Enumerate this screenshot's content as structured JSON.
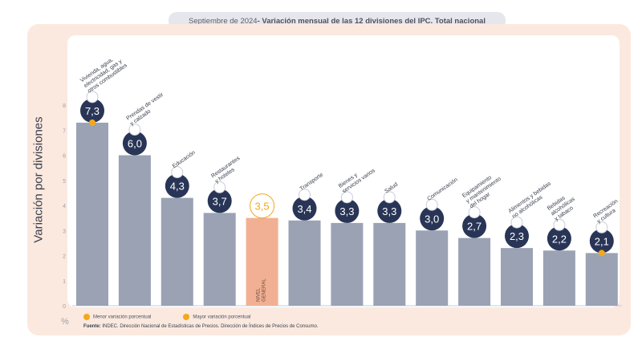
{
  "header": {
    "title_date": "Septiembre de 2024",
    "title_rest": " - Variación mensual de las 12 divisiones del IPC. Total nacional"
  },
  "colors": {
    "bar": "#9aa2b4",
    "highlight": "#f1b093",
    "badge": "#293556",
    "accent": "#f2a81d",
    "background": "#fbe9df"
  },
  "chart_data": {
    "type": "bar",
    "ylabel": "Variación por divisiones",
    "unit": "%",
    "ylim": [
      0,
      8
    ],
    "yticks": [
      0,
      1,
      2,
      3,
      4,
      5,
      6,
      7,
      8
    ],
    "grid": false,
    "categories": [
      "Vivienda, agua, electricidad, gas y otros combustibles",
      "Prendas de vestir y calzado",
      "Educación",
      "Restaurantes y hoteles",
      "Nivel general",
      "Transporte",
      "Bienes y servicios varios",
      "Salud",
      "Comunicación",
      "Equipamiento y mantenimiento del hogar",
      "Alimentos y bebidas no alcohólicas",
      "Bebidas alcohólicas y tabaco",
      "Recreación y cultura"
    ],
    "values": [
      7.3,
      6.0,
      4.3,
      3.7,
      3.5,
      3.4,
      3.3,
      3.3,
      3.0,
      2.7,
      2.3,
      2.2,
      2.1
    ],
    "value_labels": [
      "7,3",
      "6,0",
      "4,3",
      "3,7",
      "3,5",
      "3,4",
      "3,3",
      "3,3",
      "3,0",
      "2,7",
      "2,3",
      "2,2",
      "2,1"
    ],
    "category_lines": [
      [
        "Vivienda, agua,",
        "electricidad, gas y",
        "otros combustibles"
      ],
      [
        "Prendas de vestir",
        "y calzado"
      ],
      [
        "Educación"
      ],
      [
        "Restaurantes",
        "y hoteles"
      ],
      [],
      [
        "Transporte"
      ],
      [
        "Bienes y",
        "servicios varios"
      ],
      [
        "Salud"
      ],
      [
        "Comunicación"
      ],
      [
        "Equipamiento",
        "y mantenimiento",
        "del hogar"
      ],
      [
        "Alimentos y bebidas",
        "no alcohólicas"
      ],
      [
        "Bebidas",
        "alcohólicas",
        "y tabaco"
      ],
      [
        "Recreación",
        "y cultura"
      ]
    ],
    "general_bar_label": [
      "NIVEL",
      "GENERAL"
    ],
    "highlight_index": 4,
    "max_marker_index": 0,
    "min_marker_index": 12,
    "legend": [
      "Menor variación porcentual",
      "Mayor variación porcentual"
    ]
  },
  "footer": {
    "source_label": "Fuente:",
    "source_text": " INDEC. Dirección Nacional de Estadísticas de Precios. Dirección de Índices de Precios de Consumo."
  }
}
